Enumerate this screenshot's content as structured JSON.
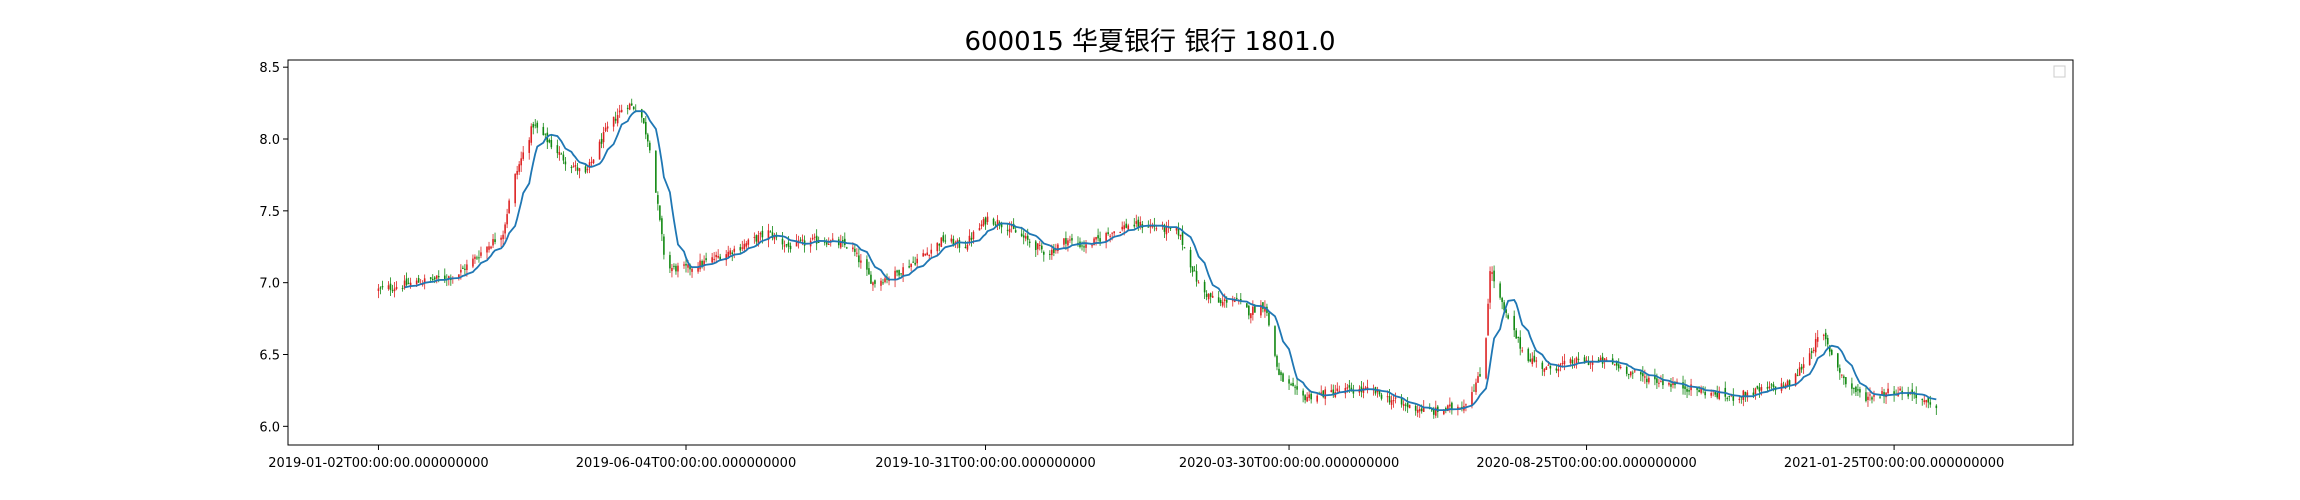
{
  "chart_data": {
    "type": "candlestick",
    "title": "600015 华夏银行 银行 1801.0",
    "xlabel": "",
    "ylabel": "",
    "ylim": [
      5.87,
      8.55
    ],
    "yticks": [
      6.0,
      6.5,
      7.0,
      7.5,
      8.0,
      8.5
    ],
    "ytick_labels": [
      "6.0",
      "6.5",
      "7.0",
      "7.5",
      "8.0",
      "8.5"
    ],
    "x_range": [
      "2018-11-18",
      "2021-04-24"
    ],
    "xticks": [
      "2019-01-02",
      "2019-06-04",
      "2019-10-31",
      "2020-03-30",
      "2020-08-25",
      "2021-01-25"
    ],
    "xtick_labels": [
      "2019-01-02T00:00:00.000000000",
      "2019-06-04T00:00:00.000000000",
      "2019-10-31T00:00:00.000000000",
      "2020-03-30T00:00:00.000000000",
      "2020-08-25T00:00:00.000000000",
      "2021-01-25T00:00:00.000000000"
    ],
    "legend": "top-right",
    "grid": false,
    "colors": {
      "up": "#dd2222",
      "down": "#118811",
      "ma": "#1f77b4"
    },
    "series": [
      {
        "kind": "close-trend",
        "x": [
          "2019-01-02",
          "2019-01-20",
          "2019-02-10",
          "2019-02-25",
          "2019-03-05",
          "2019-03-10",
          "2019-03-20",
          "2019-04-05",
          "2019-04-15",
          "2019-04-25",
          "2019-05-05",
          "2019-05-12",
          "2019-05-17",
          "2019-05-25",
          "2019-06-05",
          "2019-06-15",
          "2019-07-01",
          "2019-07-15",
          "2019-07-25",
          "2019-08-10",
          "2019-08-25",
          "2019-09-05",
          "2019-09-15",
          "2019-10-01",
          "2019-10-10",
          "2019-10-20",
          "2019-11-01",
          "2019-11-10",
          "2019-11-20",
          "2019-12-01",
          "2019-12-10",
          "2019-12-20",
          "2020-01-01",
          "2020-01-10",
          "2020-01-20",
          "2020-02-04",
          "2020-02-15",
          "2020-02-25",
          "2020-03-01",
          "2020-03-10",
          "2020-03-18",
          "2020-03-25",
          "2020-04-05",
          "2020-04-25",
          "2020-05-10",
          "2020-05-25",
          "2020-06-10",
          "2020-06-25",
          "2020-07-05",
          "2020-07-08",
          "2020-07-15",
          "2020-07-25",
          "2020-08-05",
          "2020-08-20",
          "2020-09-05",
          "2020-09-20",
          "2020-10-05",
          "2020-10-20",
          "2020-11-05",
          "2020-11-20",
          "2020-12-05",
          "2020-12-20",
          "2021-01-01",
          "2021-01-10",
          "2021-01-25",
          "2021-02-05",
          "2021-02-15"
        ],
        "values": [
          6.95,
          7.0,
          7.05,
          7.25,
          7.35,
          7.7,
          8.1,
          7.85,
          7.75,
          8.05,
          8.25,
          8.2,
          7.95,
          7.1,
          7.1,
          7.15,
          7.25,
          7.35,
          7.25,
          7.3,
          7.25,
          7.0,
          7.05,
          7.2,
          7.3,
          7.25,
          7.45,
          7.4,
          7.3,
          7.2,
          7.3,
          7.25,
          7.35,
          7.4,
          7.4,
          7.35,
          6.95,
          6.85,
          6.9,
          6.8,
          6.85,
          6.35,
          6.2,
          6.25,
          6.25,
          6.15,
          6.1,
          6.15,
          6.4,
          7.1,
          6.8,
          6.5,
          6.4,
          6.45,
          6.45,
          6.35,
          6.3,
          6.25,
          6.2,
          6.25,
          6.3,
          6.65,
          6.3,
          6.2,
          6.25,
          6.22,
          6.1
        ]
      }
    ]
  }
}
